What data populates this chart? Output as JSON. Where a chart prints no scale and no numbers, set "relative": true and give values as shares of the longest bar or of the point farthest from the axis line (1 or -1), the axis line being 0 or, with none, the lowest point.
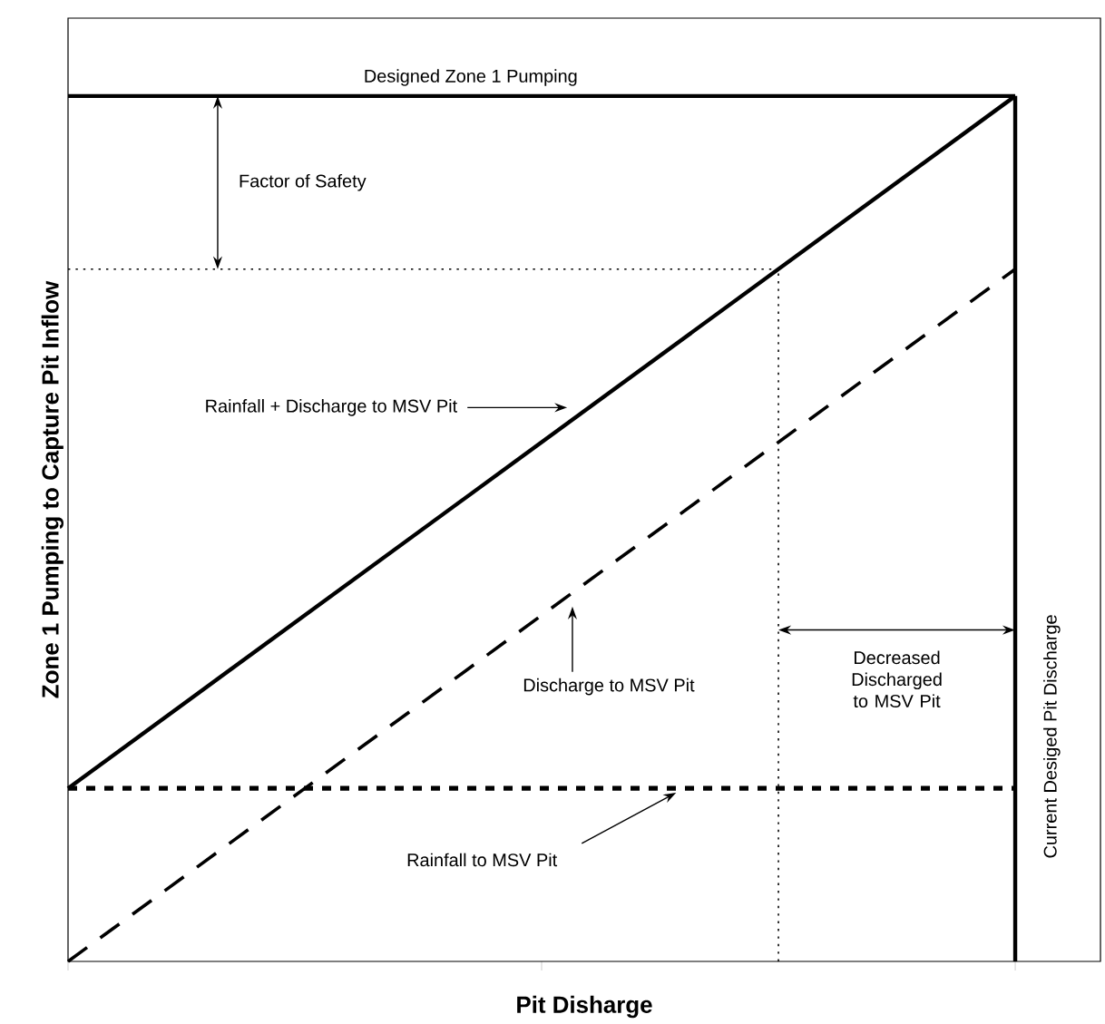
{
  "chart_data": {
    "type": "line",
    "relative": true,
    "xlabel": "Pit Disharge",
    "ylabel": "Zone 1 Pumping to Capture Pit Inflow",
    "categories": [
      null,
      null,
      null
    ],
    "series": [
      {
        "color": "#000000",
        "line_style": "solid",
        "values": [
          0.2,
          0.6,
          1
        ]
      },
      {
        "color": "#000000",
        "line_style": "dashed",
        "values": [
          0,
          0.4,
          0.8
        ]
      },
      {
        "color": "#000000",
        "line_style": "dashed",
        "values": [
          0.2,
          0.2,
          0.2
        ]
      }
    ],
    "ref_lines": [
      {
        "axis": "y",
        "value": 1,
        "label": "Designed Zone 1 Pumping",
        "line_style": "solid"
      },
      {
        "axis": "y",
        "value": 0.8,
        "line_style": "dotted"
      }
    ],
    "annotations": [
      "Factor of Safety",
      "Rainfall + Discharge to MSV Pit",
      "Discharge to MSV Pit",
      "Rainfall to MSV Pit",
      "Decreased Discharged to MSV Pit",
      "Current Desiged Pit Discharge"
    ]
  }
}
